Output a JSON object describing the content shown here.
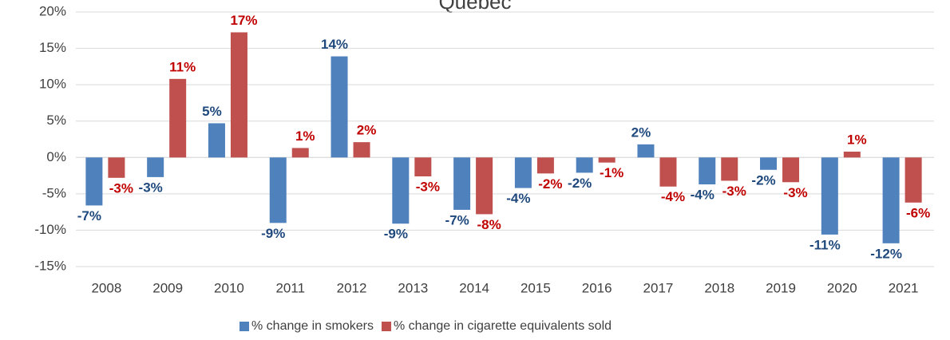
{
  "chart_data": {
    "type": "bar",
    "title": "Québec",
    "categories": [
      "2008",
      "2009",
      "2010",
      "2011",
      "2012",
      "2013",
      "2014",
      "2015",
      "2016",
      "2017",
      "2018",
      "2019",
      "2020",
      "2021"
    ],
    "series": [
      {
        "name": "% change in smokers",
        "color": "#4f81bd",
        "label_color": "#1f497d",
        "values": [
          -6.6,
          -2.7,
          4.7,
          -9.0,
          13.9,
          -9.1,
          -7.2,
          -4.2,
          -2.1,
          1.8,
          -3.7,
          -1.7,
          -10.6,
          -11.8
        ],
        "value_labels": [
          "-7%",
          "-3%",
          "5%",
          "-9%",
          "14%",
          "-9%",
          "-7%",
          "-4%",
          "-2%",
          "2%",
          "-4%",
          "-2%",
          "-11%",
          "-12%"
        ]
      },
      {
        "name": "% change in cigarette equivalents sold",
        "color": "#c0504d",
        "label_color": "#c00000",
        "values": [
          -2.8,
          10.8,
          17.2,
          1.3,
          2.1,
          -2.6,
          -7.8,
          -2.2,
          -0.7,
          -4.0,
          -3.2,
          -3.4,
          0.8,
          -6.2
        ],
        "value_labels": [
          "-3%",
          "11%",
          "17%",
          "1%",
          "2%",
          "-3%",
          "-8%",
          "-2%",
          "-1%",
          "-4%",
          "-3%",
          "-3%",
          "1%",
          "-6%"
        ]
      }
    ],
    "ylim": [
      -15,
      20
    ],
    "yticks": [
      {
        "value": -15,
        "label": "-15%"
      },
      {
        "value": -10,
        "label": "-10%"
      },
      {
        "value": -5,
        "label": "-5%"
      },
      {
        "value": 0,
        "label": "0%"
      },
      {
        "value": 5,
        "label": "5%"
      },
      {
        "value": 10,
        "label": "10%"
      },
      {
        "value": 15,
        "label": "15%"
      },
      {
        "value": 20,
        "label": "20%"
      }
    ],
    "grid": true,
    "legend": "bottom"
  }
}
